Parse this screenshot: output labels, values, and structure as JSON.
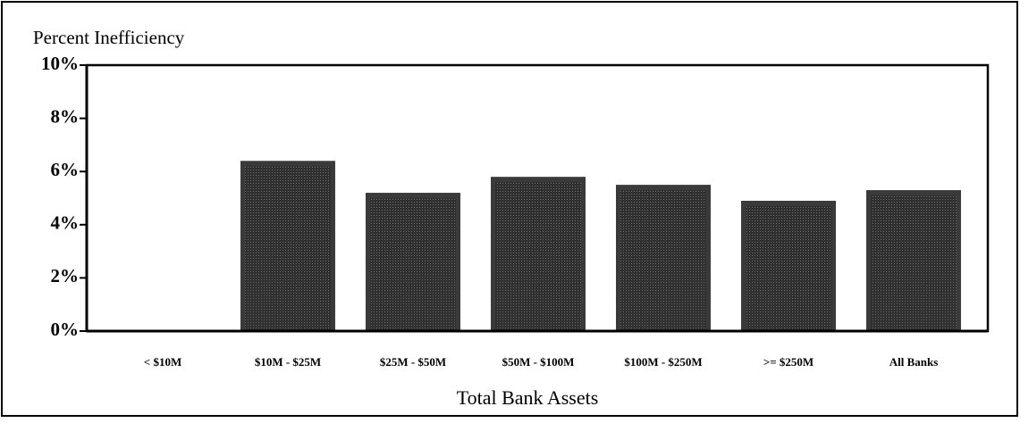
{
  "chart_data": {
    "type": "bar",
    "title": "Percent Inefficiency",
    "x_label": "Total Bank Assets",
    "categories": [
      "< $10M",
      "$10M - $25M",
      "$25M - $50M",
      "$50M - $100M",
      "$100M - $250M",
      ">= $250M",
      "All Banks"
    ],
    "values": [
      0,
      6.4,
      5.2,
      5.8,
      5.5,
      4.9,
      5.3
    ],
    "color": "#3a3a3a",
    "ylim": [
      0,
      10
    ],
    "yticks": [
      {
        "value": 0,
        "label": "0%"
      },
      {
        "value": 2,
        "label": "2%"
      },
      {
        "value": 4,
        "label": "4%"
      },
      {
        "value": 6,
        "label": "6%"
      },
      {
        "value": 8,
        "label": "8%"
      },
      {
        "value": 10,
        "label": "10%"
      }
    ],
    "grid": false
  }
}
